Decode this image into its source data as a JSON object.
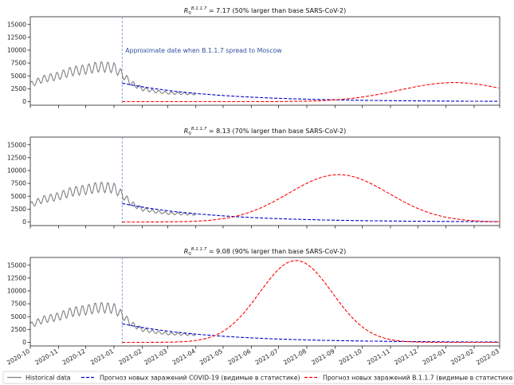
{
  "figure": {
    "x_tick_labels": [
      "2020-10",
      "2020-11",
      "2020-12",
      "2021-01",
      "2021-02",
      "2021-03",
      "2021-04",
      "2021-05",
      "2021-06",
      "2021-07",
      "2021-08",
      "2021-09",
      "2021-10",
      "2021-11",
      "2021-12",
      "2022-01",
      "2022-02",
      "2022-03"
    ],
    "y_tick_labels": [
      "0",
      "2500",
      "5000",
      "7500",
      "10000",
      "12500",
      "15000"
    ],
    "legend": [
      {
        "label": "Historical data",
        "color": "#808080",
        "style": "solid"
      },
      {
        "label": "Прогноз новых заражений COVID-19 (видимые в статистике)",
        "color": "#0000cc",
        "style": "dashed"
      },
      {
        "label": "Прогноз новых заражений B.1.1.7 (видимые в статистике",
        "color": "#ff0000",
        "style": "dashed"
      }
    ]
  },
  "chart_data": [
    {
      "type": "line",
      "title_symbol": "R",
      "title_sub": "0",
      "title_sup": "B.1.1.7",
      "title_rest": " = 7.17 (50% larger than base SARS-CoV-2)",
      "annotation": "Approximate date when B.1.1.7 spread to Moscow",
      "event_date": "2021-01-10",
      "x_range": [
        "2020-10-01",
        "2022-03-01"
      ],
      "ylim": [
        -700,
        16500
      ],
      "b117_forecast": {
        "start": "2021-01-10",
        "peak_date": "2022-01-10",
        "peak": 3700,
        "sigma_days": 60,
        "end_value": 2950
      }
    },
    {
      "type": "line",
      "title_symbol": "R",
      "title_sub": "0",
      "title_sup": "B.1.1.7",
      "title_rest": " = 8.13 (70% larger than base SARS-CoV-2)",
      "annotation": "",
      "event_date": "2021-01-10",
      "x_range": [
        "2020-10-01",
        "2022-03-01"
      ],
      "ylim": [
        -700,
        16500
      ],
      "b117_forecast": {
        "start": "2021-01-10",
        "peak_date": "2021-09-05",
        "peak": 9200,
        "sigma_days": 55,
        "end_value": 130
      }
    },
    {
      "type": "line",
      "title_symbol": "R",
      "title_sub": "0",
      "title_sup": "B.1.1.7",
      "title_rest": " = 9.08 (90% larger than base SARS-CoV-2)",
      "annotation": "",
      "event_date": "2021-01-10",
      "x_range": [
        "2020-10-01",
        "2022-03-01"
      ],
      "ylim": [
        -700,
        16500
      ],
      "b117_forecast": {
        "start": "2021-01-10",
        "peak_date": "2021-07-20",
        "peak": 15900,
        "sigma_days": 40,
        "end_value": 10
      }
    }
  ],
  "shared_series": {
    "historical": {
      "name": "Historical data",
      "x": [
        "2020-10-01",
        "2020-10-15",
        "2020-11-01",
        "2020-11-15",
        "2020-12-01",
        "2020-12-15",
        "2021-01-01",
        "2021-01-10",
        "2021-01-20",
        "2021-02-01",
        "2021-02-15",
        "2021-03-01",
        "2021-03-15",
        "2021-04-01"
      ],
      "y": [
        3300,
        4400,
        5000,
        5900,
        6300,
        6800,
        6600,
        5300,
        3600,
        2500,
        2000,
        1700,
        1600,
        1500
      ],
      "weekly_amplitude": 900
    },
    "covid_forecast": {
      "name": "Прогноз новых заражений COVID-19 (видимые в статистике)",
      "start": "2021-01-10",
      "start_value": 3600,
      "decay_days": 100,
      "end_date": "2022-03-01"
    }
  }
}
